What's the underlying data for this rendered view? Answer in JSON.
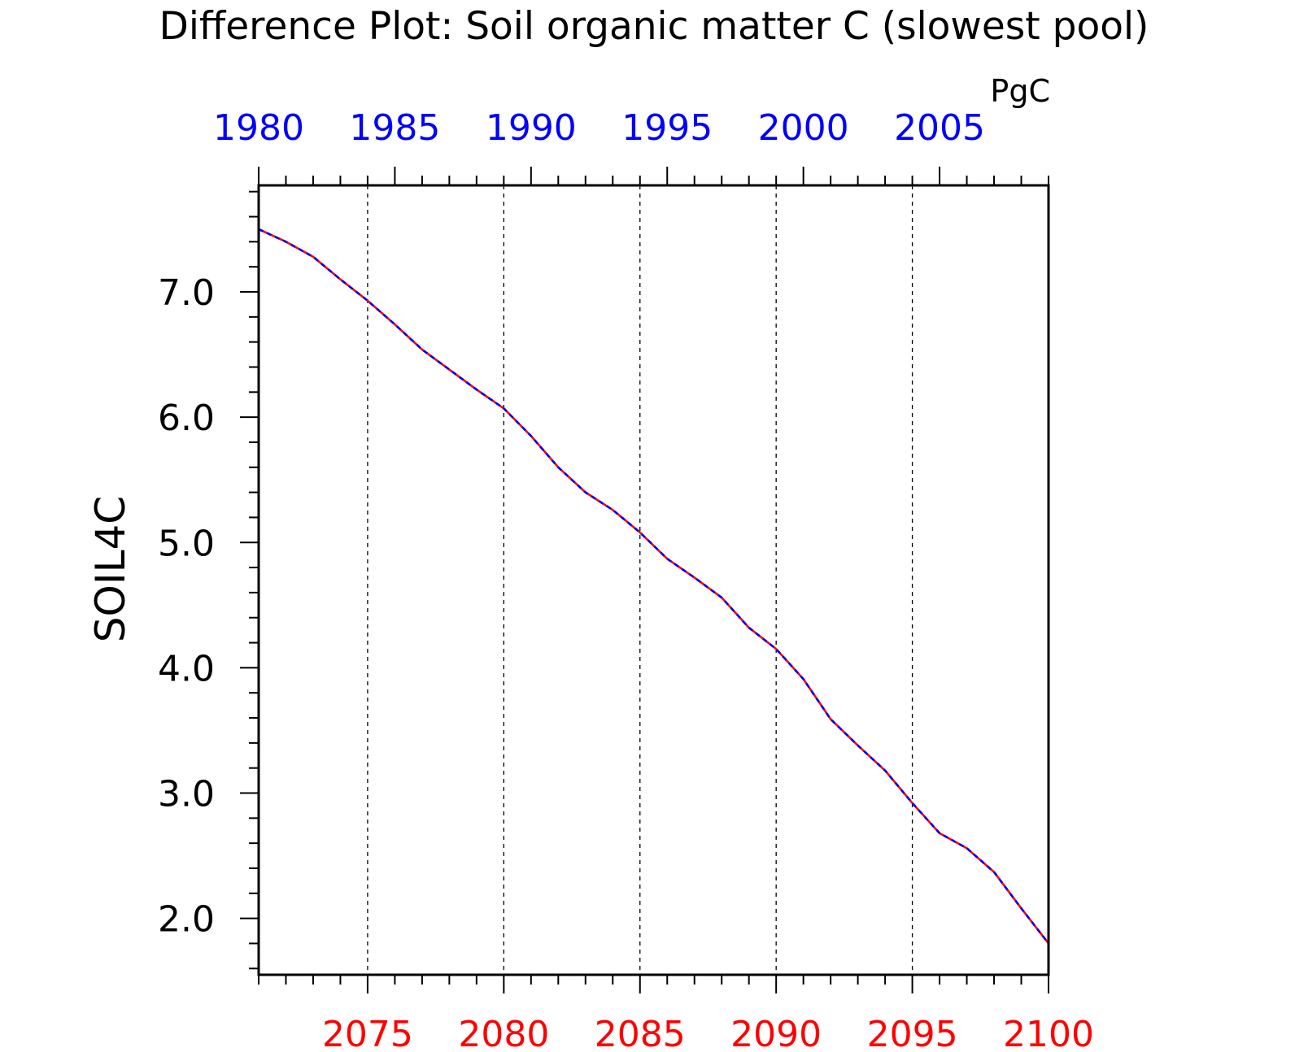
{
  "chart_data": {
    "type": "line",
    "title": "Difference Plot: Soil organic matter C (slowest pool)",
    "units": "PgC",
    "ylabel": "SOIL4C",
    "xlabel": "",
    "ylim": [
      1.55,
      7.85
    ],
    "yticks": [
      2.0,
      3.0,
      4.0,
      5.0,
      6.0,
      7.0
    ],
    "ytick_labels": [
      "2.0",
      "3.0",
      "4.0",
      "5.0",
      "6.0",
      "7.0"
    ],
    "bottom_axis": {
      "range": [
        2071,
        2100
      ],
      "ticks": [
        2075,
        2080,
        2085,
        2090,
        2095,
        2100
      ],
      "tick_labels": [
        "2075",
        "2080",
        "2085",
        "2090",
        "2095",
        "2100"
      ],
      "color": "#ff0000"
    },
    "top_axis": {
      "range": [
        1980,
        2009
      ],
      "ticks": [
        1980,
        1985,
        1990,
        1995,
        2000,
        2005
      ],
      "tick_labels": [
        "1980",
        "1985",
        "1990",
        "1995",
        "2000",
        "2005"
      ],
      "color": "#0000ff"
    },
    "grid": "vertical-dashed",
    "x": [
      2071,
      2072,
      2073,
      2074,
      2075,
      2076,
      2077,
      2078,
      2079,
      2080,
      2081,
      2082,
      2083,
      2084,
      2085,
      2086,
      2087,
      2088,
      2089,
      2090,
      2091,
      2092,
      2093,
      2094,
      2095,
      2096,
      2097,
      2098,
      2099,
      2100
    ],
    "series": [
      {
        "color": "#ff0000",
        "style": "solid",
        "values": [
          7.5,
          7.4,
          7.28,
          7.1,
          6.93,
          6.74,
          6.54,
          6.38,
          6.22,
          6.07,
          5.85,
          5.6,
          5.4,
          5.26,
          5.08,
          4.87,
          4.72,
          4.56,
          4.32,
          4.15,
          3.91,
          3.59,
          3.38,
          3.18,
          2.92,
          2.68,
          2.56,
          2.37,
          2.08,
          1.8
        ]
      },
      {
        "color": "#0000ff",
        "style": "dashed",
        "values": [
          7.5,
          7.4,
          7.28,
          7.1,
          6.93,
          6.74,
          6.54,
          6.38,
          6.22,
          6.07,
          5.85,
          5.6,
          5.4,
          5.26,
          5.08,
          4.87,
          4.72,
          4.56,
          4.32,
          4.15,
          3.91,
          3.59,
          3.38,
          3.18,
          2.92,
          2.68,
          2.56,
          2.37,
          2.08,
          1.8
        ]
      }
    ]
  }
}
